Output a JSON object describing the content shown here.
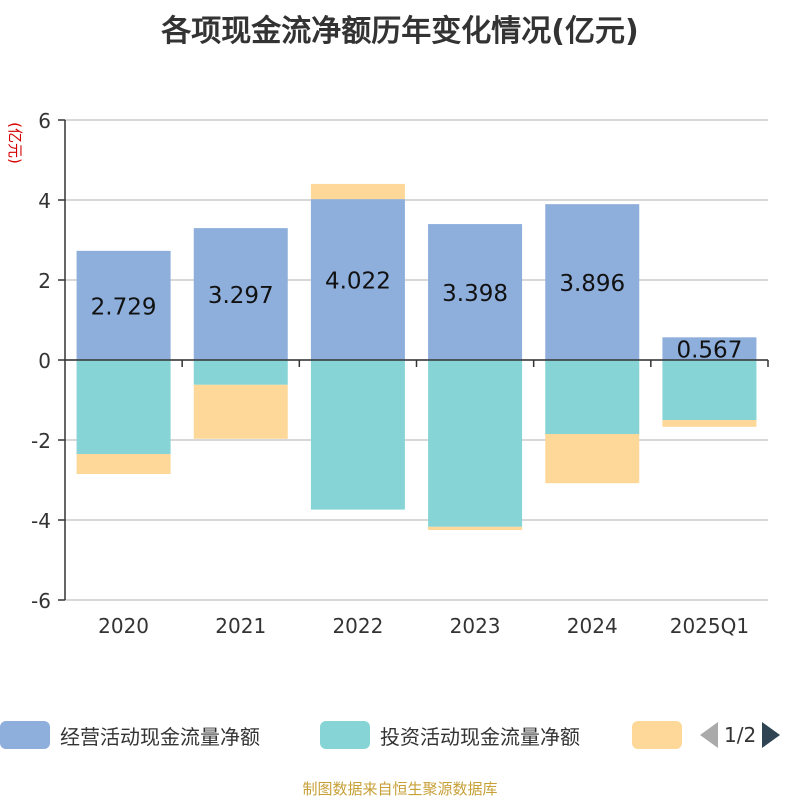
{
  "title": "各项现金流净额历年变化情况(亿元)",
  "chart_data": {
    "type": "bar",
    "stacked": true,
    "ylabel": "(亿元)",
    "ylim": [
      -6,
      6
    ],
    "yticks": [
      6,
      4,
      2,
      0,
      -2,
      -4,
      -6
    ],
    "grid": true,
    "categories": [
      "2020",
      "2021",
      "2022",
      "2023",
      "2024",
      "2025Q1"
    ],
    "series": [
      {
        "name": "经营活动现金流量净额",
        "color": "#8eaedb",
        "values": [
          2.729,
          3.297,
          4.022,
          3.398,
          3.896,
          0.567
        ],
        "labels": [
          "2.729",
          "3.297",
          "4.022",
          "3.398",
          "3.896",
          "0.567"
        ]
      },
      {
        "name": "投资活动现金流量净额",
        "color": "#86d4d6",
        "values": [
          -2.35,
          -0.62,
          -3.74,
          -4.17,
          -1.85,
          -1.5
        ]
      },
      {
        "name": "",
        "color": "#fed899",
        "values": [
          -0.5,
          -1.35,
          0.38,
          -0.08,
          -1.23,
          -0.17
        ]
      }
    ]
  },
  "legend": {
    "items": [
      {
        "label": "经营活动现金流量净额",
        "color": "#8eaedb"
      },
      {
        "label": "投资活动现金流量净额",
        "color": "#86d4d6"
      },
      {
        "label": "",
        "color": "#fed899"
      }
    ],
    "pager_text": "1/2"
  },
  "source": "制图数据来自恒生聚源数据库"
}
